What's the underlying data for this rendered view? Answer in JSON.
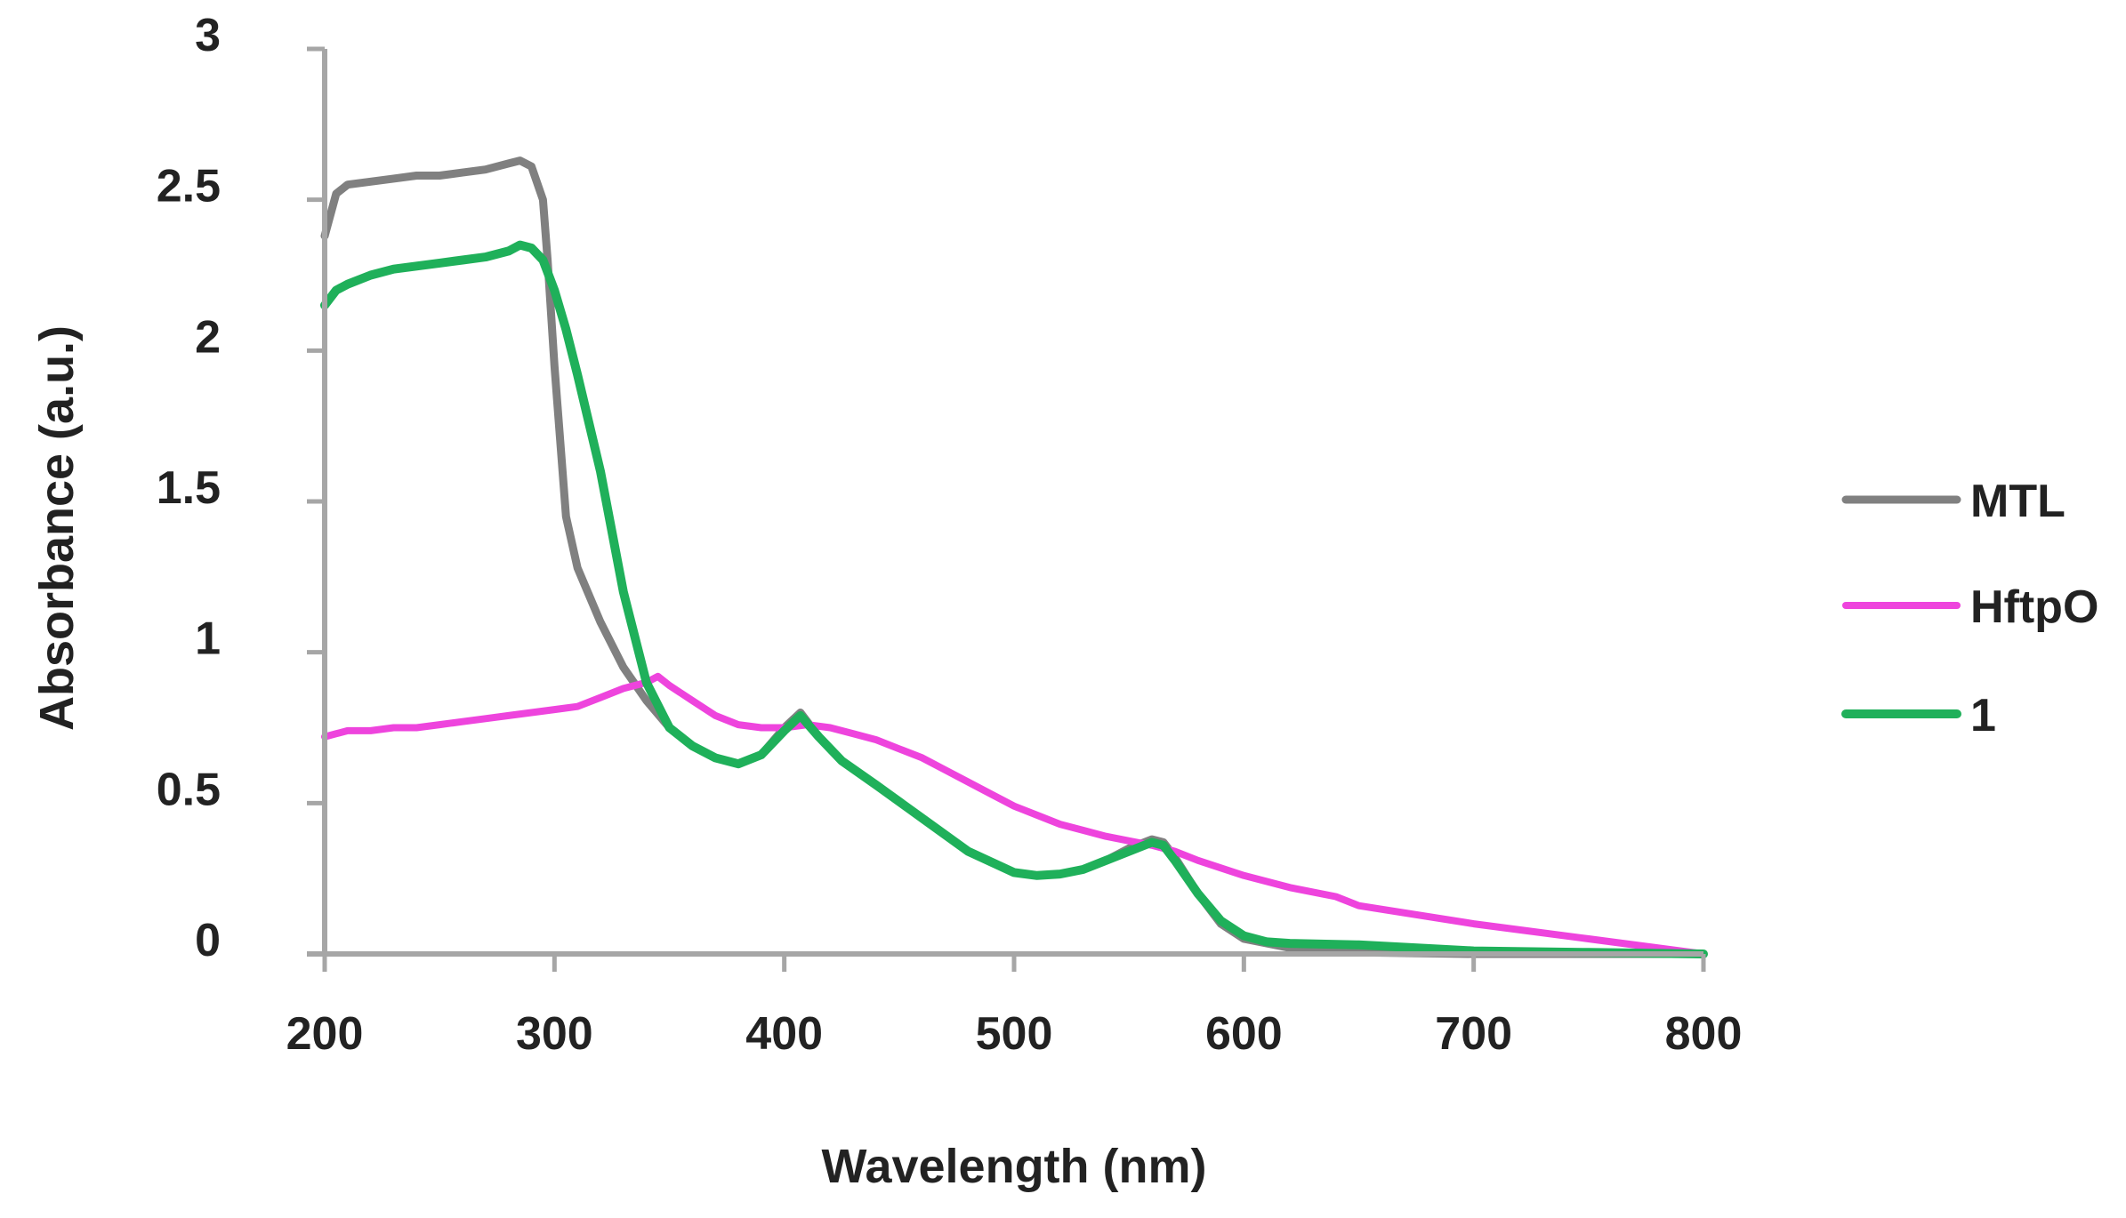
{
  "chart_data": {
    "type": "line",
    "title": "",
    "xlabel": "Wavelength (nm)",
    "ylabel": "Absorbance (a.u.)",
    "xlim": [
      200,
      800
    ],
    "ylim": [
      0,
      3
    ],
    "xticks": [
      "200",
      "300",
      "400",
      "500",
      "600",
      "700",
      "800"
    ],
    "yticks": [
      "0",
      "0.5",
      "1",
      "1.5",
      "2",
      "2.5",
      "3"
    ],
    "xtick_values": [
      200,
      300,
      400,
      500,
      600,
      700,
      800
    ],
    "ytick_values": [
      0,
      0.5,
      1,
      1.5,
      2,
      2.5,
      3
    ],
    "grid": false,
    "legend_position": "right",
    "series": [
      {
        "name": "MTL",
        "color": "#808080",
        "x": [
          200,
          205,
          210,
          220,
          230,
          240,
          250,
          260,
          270,
          280,
          285,
          290,
          295,
          297,
          300,
          305,
          310,
          320,
          330,
          340,
          350,
          360,
          370,
          380,
          390,
          400,
          407,
          415,
          425,
          440,
          460,
          480,
          500,
          510,
          520,
          530,
          540,
          550,
          560,
          565,
          570,
          580,
          590,
          600,
          620,
          650,
          700,
          750,
          800
        ],
        "y": [
          2.38,
          2.52,
          2.55,
          2.56,
          2.57,
          2.58,
          2.58,
          2.59,
          2.6,
          2.62,
          2.63,
          2.61,
          2.5,
          2.3,
          1.95,
          1.45,
          1.28,
          1.1,
          0.95,
          0.84,
          0.75,
          0.69,
          0.65,
          0.63,
          0.66,
          0.75,
          0.8,
          0.72,
          0.64,
          0.56,
          0.45,
          0.34,
          0.27,
          0.26,
          0.265,
          0.28,
          0.31,
          0.35,
          0.38,
          0.37,
          0.32,
          0.2,
          0.1,
          0.05,
          0.02,
          0.005,
          0.0,
          0.0,
          0.0
        ]
      },
      {
        "name": "HftpO",
        "color": "#EE44DD",
        "x": [
          200,
          205,
          210,
          220,
          230,
          240,
          250,
          260,
          270,
          280,
          290,
          300,
          310,
          320,
          330,
          340,
          345,
          350,
          360,
          370,
          380,
          390,
          400,
          410,
          420,
          430,
          440,
          450,
          460,
          470,
          480,
          490,
          500,
          510,
          520,
          530,
          540,
          550,
          560,
          570,
          580,
          600,
          620,
          640,
          650,
          700,
          750,
          800
        ],
        "y": [
          0.72,
          0.73,
          0.74,
          0.74,
          0.75,
          0.75,
          0.76,
          0.77,
          0.78,
          0.79,
          0.8,
          0.81,
          0.82,
          0.85,
          0.88,
          0.9,
          0.92,
          0.89,
          0.84,
          0.79,
          0.76,
          0.75,
          0.75,
          0.76,
          0.75,
          0.73,
          0.71,
          0.68,
          0.65,
          0.61,
          0.57,
          0.53,
          0.49,
          0.46,
          0.43,
          0.41,
          0.39,
          0.375,
          0.36,
          0.34,
          0.31,
          0.26,
          0.22,
          0.19,
          0.16,
          0.1,
          0.05,
          0.0
        ]
      },
      {
        "name": "1",
        "color": "#1FB05A",
        "x": [
          200,
          205,
          210,
          220,
          230,
          240,
          250,
          260,
          270,
          280,
          285,
          290,
          295,
          300,
          305,
          310,
          320,
          330,
          340,
          350,
          360,
          370,
          380,
          390,
          400,
          407,
          415,
          425,
          440,
          460,
          480,
          500,
          510,
          520,
          530,
          540,
          550,
          560,
          565,
          570,
          580,
          590,
          600,
          610,
          620,
          650,
          700,
          750,
          800
        ],
        "y": [
          2.15,
          2.2,
          2.22,
          2.25,
          2.27,
          2.28,
          2.29,
          2.3,
          2.31,
          2.33,
          2.35,
          2.34,
          2.3,
          2.2,
          2.07,
          1.92,
          1.6,
          1.2,
          0.9,
          0.75,
          0.69,
          0.65,
          0.63,
          0.66,
          0.74,
          0.79,
          0.72,
          0.64,
          0.56,
          0.45,
          0.34,
          0.27,
          0.26,
          0.265,
          0.28,
          0.31,
          0.34,
          0.37,
          0.36,
          0.31,
          0.2,
          0.11,
          0.06,
          0.04,
          0.035,
          0.03,
          0.01,
          0.005,
          0.0
        ]
      }
    ]
  }
}
